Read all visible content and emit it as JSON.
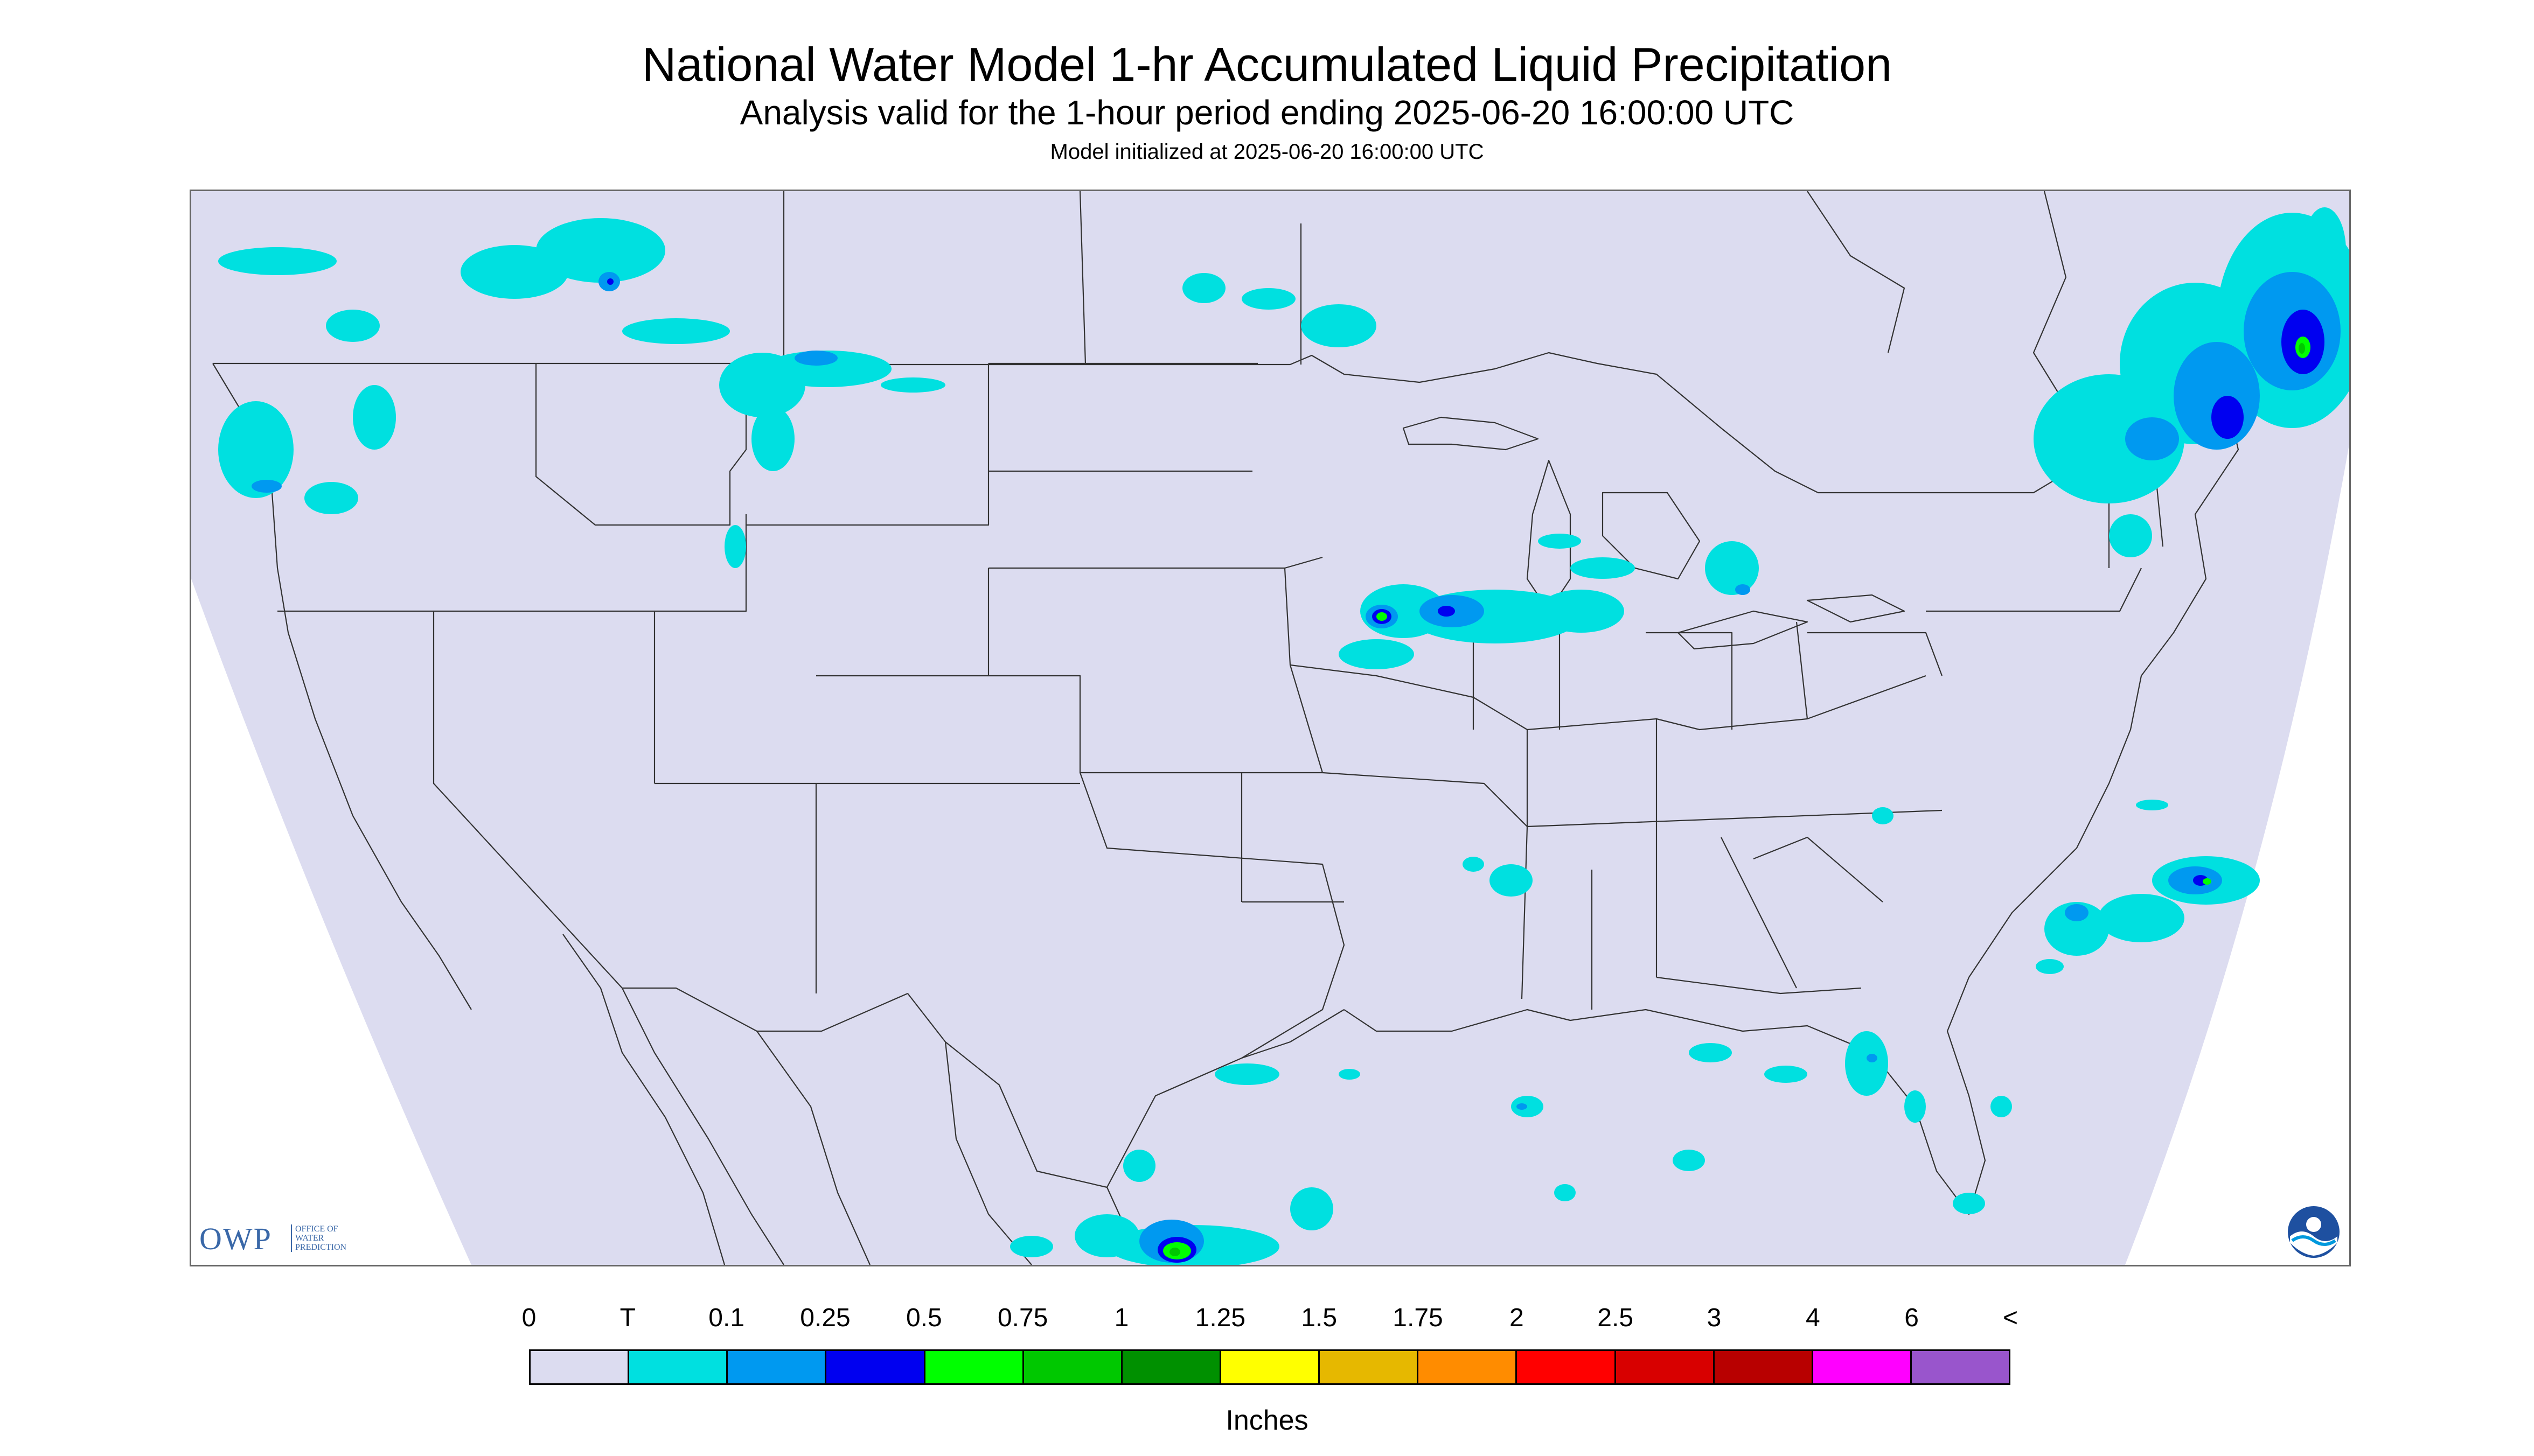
{
  "header": {
    "title": "National Water Model 1-hr Accumulated Liquid Precipitation",
    "subtitle": "Analysis valid for the 1-hour period ending 2025-06-20 16:00:00 UTC",
    "init": "Model initialized at 2025-06-20 16:00:00 UTC"
  },
  "colors": {
    "map_domain": "#dcdcf0",
    "outside_domain": "#ffffff",
    "boundaries": "#333333"
  },
  "legend": {
    "labels": [
      "0",
      "T",
      "0.1",
      "0.25",
      "0.5",
      "0.75",
      "1",
      "1.25",
      "1.5",
      "1.75",
      "2",
      "2.5",
      "3",
      "4",
      "6",
      "<"
    ],
    "colors": [
      "#dcdcf0",
      "#00e0e0",
      "#0099f0",
      "#0000f0",
      "#00ff00",
      "#00c800",
      "#009000",
      "#ffff00",
      "#e6b800",
      "#ff8c00",
      "#ff0000",
      "#d80000",
      "#b80000",
      "#ff00ff",
      "#9955cc"
    ],
    "units": "Inches"
  },
  "logos": {
    "owp_main": "OWP",
    "owp_sub": [
      "OFFICE OF",
      "WATER",
      "PREDICTION"
    ],
    "noaa_text": "NOAA"
  },
  "precip_regions": [
    {
      "name": "Pacific Northwest",
      "max_category": "0.25"
    },
    {
      "name": "Northern Rockies / Montana",
      "max_category": "0.25"
    },
    {
      "name": "Upper Midwest (Iowa / Wisconsin / Illinois)",
      "max_category": "0.75"
    },
    {
      "name": "Great Lakes (Michigan)",
      "max_category": "0.25"
    },
    {
      "name": "Northern New England / Quebec",
      "max_category": "0.75"
    },
    {
      "name": "Atlantic off Carolinas",
      "max_category": "0.75"
    },
    {
      "name": "Gulf of Mexico / Florida",
      "max_category": "0.25"
    },
    {
      "name": "Southern Mexico",
      "max_category": "0.75"
    }
  ]
}
